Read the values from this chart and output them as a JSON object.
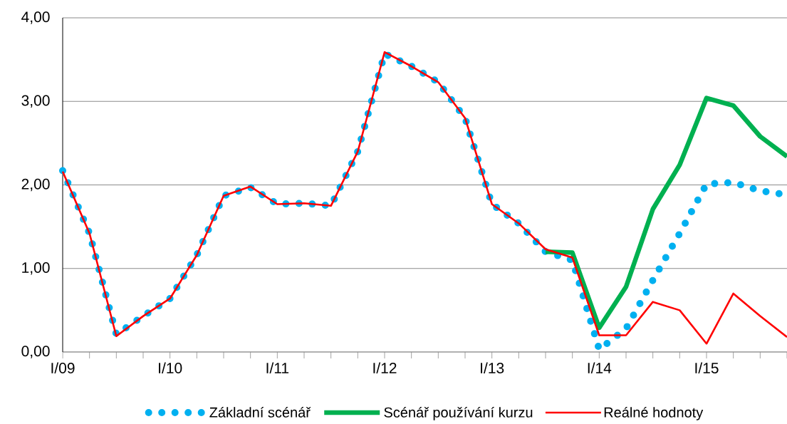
{
  "chart_data": {
    "type": "line",
    "categories": [
      "I/09",
      null,
      null,
      null,
      "I/10",
      null,
      null,
      null,
      "I/11",
      null,
      null,
      null,
      "I/12",
      null,
      null,
      null,
      "I/13",
      null,
      null,
      null,
      "I/14",
      null,
      null,
      null,
      "I/15",
      null,
      null,
      null
    ],
    "series": [
      {
        "name": "Základní scénář",
        "color": "#00b0f0",
        "line_style": "dotted",
        "values": [
          2.17,
          1.42,
          0.21,
          0.43,
          0.64,
          1.16,
          1.87,
          1.97,
          1.77,
          1.78,
          1.75,
          2.4,
          3.57,
          3.42,
          3.23,
          2.8,
          1.77,
          1.54,
          1.2,
          1.1,
          0.03,
          0.28,
          0.86,
          1.42,
          2.01,
          2.03,
          1.93,
          1.88
        ]
      },
      {
        "name": "Scénář používání kurzu",
        "color": "#00b050",
        "line_style": "solid",
        "values": [
          null,
          null,
          null,
          null,
          null,
          null,
          null,
          null,
          null,
          null,
          null,
          null,
          null,
          null,
          null,
          null,
          null,
          null,
          1.2,
          1.19,
          0.29,
          0.78,
          1.71,
          2.24,
          3.04,
          2.95,
          2.58,
          2.34
        ]
      },
      {
        "name": "Reálné hodnoty",
        "color": "#ff0000",
        "line_style": "solid",
        "values": [
          2.16,
          1.42,
          0.19,
          0.43,
          0.64,
          1.16,
          1.87,
          1.98,
          1.77,
          1.78,
          1.75,
          2.4,
          3.59,
          3.42,
          3.23,
          2.8,
          1.77,
          1.54,
          1.23,
          1.13,
          0.2,
          0.2,
          0.6,
          0.5,
          0.1,
          0.7,
          0.43,
          0.18
        ]
      }
    ],
    "ylim": [
      0,
      4
    ],
    "yticks": [
      {
        "value": 0,
        "label": "0,00"
      },
      {
        "value": 1,
        "label": "1,00"
      },
      {
        "value": 2,
        "label": "2,00"
      },
      {
        "value": 3,
        "label": "3,00"
      },
      {
        "value": 4,
        "label": "4,00"
      }
    ],
    "grid": "y",
    "legend": "bottom"
  }
}
